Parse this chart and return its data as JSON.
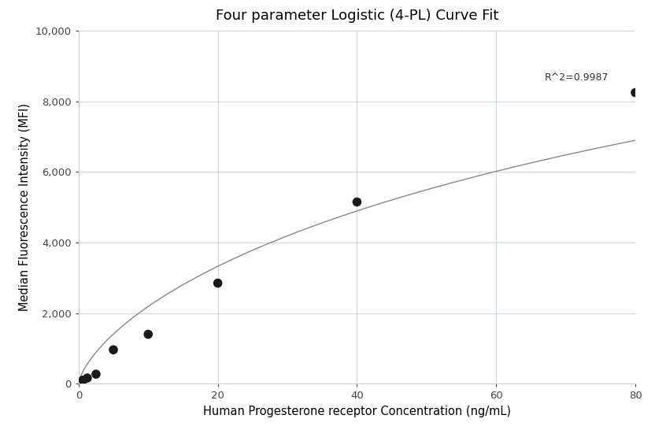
{
  "title": "Four parameter Logistic (4-PL) Curve Fit",
  "xlabel": "Human Progesterone receptor Concentration (ng/mL)",
  "ylabel": "Median Fluorescence Intensity (MFI)",
  "r_squared": "R^2=0.9987",
  "x_data": [
    0.625,
    1.25,
    2.5,
    5.0,
    10.0,
    20.0,
    40.0,
    80.0
  ],
  "y_data": [
    100,
    160,
    270,
    960,
    1400,
    2850,
    5150,
    8250
  ],
  "xlim": [
    0,
    80
  ],
  "ylim": [
    0,
    10000
  ],
  "yticks": [
    0,
    2000,
    4000,
    6000,
    8000,
    10000
  ],
  "ytick_labels": [
    "0",
    "2,000",
    "4,000",
    "6,000",
    "8,000",
    "10,000"
  ],
  "xticks": [
    0,
    20,
    40,
    60,
    80
  ],
  "dot_color": "#1a1a1a",
  "dot_size": 70,
  "line_color": "#888888",
  "grid_color": "#cdd5e0",
  "bg_color": "#ffffff",
  "title_fontsize": 13,
  "label_fontsize": 10.5,
  "tick_fontsize": 9.5,
  "annot_fontsize": 9
}
